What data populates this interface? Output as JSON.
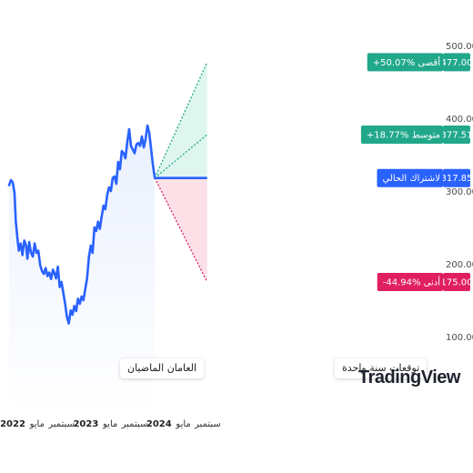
{
  "chart_data": {
    "type": "line",
    "y_ticks": [
      "500.00",
      "400.00",
      "300.00",
      "200.00",
      "100.00"
    ],
    "y_tick_values": [
      500,
      400,
      300,
      200,
      100
    ],
    "ylim": [
      60,
      540
    ],
    "x_ticks": [
      {
        "label": "2022",
        "month": 0,
        "year": true
      },
      {
        "label": "مايو",
        "month": 4,
        "year": false
      },
      {
        "label": "سبتمبر",
        "month": 8,
        "year": false
      },
      {
        "label": "2023",
        "month": 12,
        "year": true
      },
      {
        "label": "مايو",
        "month": 16,
        "year": false
      },
      {
        "label": "سبتمبر",
        "month": 20,
        "year": false
      },
      {
        "label": "2024",
        "month": 24,
        "year": true
      },
      {
        "label": "مايو",
        "month": 28,
        "year": false
      },
      {
        "label": "سبتمبر",
        "month": 32,
        "year": false
      }
    ],
    "series": [
      {
        "x": [
          -0.6,
          -0.3,
          0.0,
          0.3,
          0.5,
          0.8,
          1.0,
          1.3,
          1.6,
          1.9,
          2.2,
          2.4,
          2.7,
          3.0,
          3.3,
          3.6,
          3.9,
          4.2,
          4.5,
          4.8,
          5.1,
          5.4,
          5.7,
          6.0,
          6.3,
          6.6,
          6.9,
          7.1,
          7.4,
          7.7,
          8.0,
          8.3,
          8.6,
          8.9,
          9.2,
          9.5,
          9.8,
          10.1,
          10.4,
          10.7,
          11.0,
          11.3,
          11.6,
          11.9,
          12.2,
          12.5,
          12.8,
          13.1,
          13.4,
          13.7,
          14.0,
          14.3,
          14.6,
          14.9,
          15.2,
          15.5,
          15.8,
          16.1,
          16.4,
          16.7,
          17.0,
          17.3,
          17.6,
          17.9,
          18.2,
          18.5,
          18.8,
          19.1,
          19.4,
          19.7,
          20.0,
          20.3,
          20.6,
          20.9,
          21.2,
          21.5,
          21.8,
          22.1,
          22.4,
          22.7,
          23.0,
          23.3
        ],
        "values": [
          308,
          315,
          312,
          297,
          258,
          232,
          218,
          228,
          212,
          232,
          225,
          207,
          230,
          215,
          210,
          228,
          215,
          218,
          198,
          190,
          186,
          194,
          183,
          188,
          179,
          192,
          186,
          180,
          196,
          168,
          175,
          160,
          145,
          127,
          118,
          136,
          130,
          142,
          135,
          152,
          145,
          155,
          150,
          165,
          180,
          210,
          225,
          215,
          250,
          245,
          258,
          248,
          265,
          280,
          275,
          295,
          305,
          300,
          318,
          320,
          310,
          340,
          330,
          355,
          352,
          345,
          368,
          385,
          362,
          357,
          352,
          364,
          366,
          362,
          375,
          360,
          372,
          390,
          380,
          358,
          336,
          318
        ]
      }
    ],
    "forecast": {
      "start_month": 23.3,
      "end_month": 31.9,
      "current": {
        "value": 317.85,
        "label": "317.85",
        "text": "لاشتراك الحالي"
      },
      "high": {
        "value": 477.0,
        "label": "477.00",
        "text": "+50.07% أقصى"
      },
      "average": {
        "value": 377.51,
        "label": "377.51",
        "text": "+18.77% متوسط"
      },
      "low": {
        "value": 175.0,
        "label": "175.00",
        "text": "-44.94% أدنى"
      }
    },
    "sections": {
      "past": "العامان الماضيان",
      "future": "توقعات سنة واحدة"
    },
    "colors": {
      "line": "#2962ff",
      "area_fill": "#eaf0fe",
      "current": "#2962ff",
      "high": "#21a88b",
      "average": "#21a88b",
      "low": "#e01f5e",
      "upper_zone": "#dff6ef",
      "lower_zone": "#fbe0e8"
    },
    "watermark": "TradingView"
  }
}
